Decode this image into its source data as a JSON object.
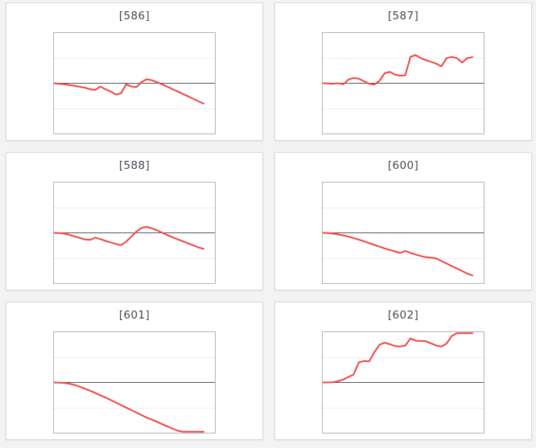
{
  "page": {
    "background_color": "#f3f3f3"
  },
  "colors": {
    "series_line": "#f04545",
    "zero_axis": "#5a5a5a",
    "gridline": "#dedede",
    "plot_border": "#b5b5b5",
    "card_border": "#d9d9d9",
    "card_background": "#ffffff",
    "title_text": "#434750"
  },
  "chart_data": [
    {
      "type": "line",
      "title": "[586]",
      "ylim": [
        -2,
        2
      ],
      "gridlines_y": [
        1,
        -1
      ],
      "zero_line_y": 0,
      "axis_labels_visible": false,
      "values": [
        0.0,
        -0.02,
        -0.04,
        -0.07,
        -0.1,
        -0.14,
        -0.18,
        -0.24,
        -0.27,
        -0.13,
        -0.24,
        -0.33,
        -0.45,
        -0.4,
        -0.04,
        -0.13,
        -0.15,
        0.05,
        0.16,
        0.12,
        0.04,
        -0.05,
        -0.14,
        -0.24,
        -0.33,
        -0.43,
        -0.52,
        -0.62,
        -0.72,
        -0.81
      ]
    },
    {
      "type": "line",
      "title": "[587]",
      "ylim": [
        -2,
        2
      ],
      "gridlines_y": [
        1,
        -1
      ],
      "zero_line_y": 0,
      "axis_labels_visible": false,
      "values": [
        0.0,
        -0.01,
        -0.02,
        0.0,
        -0.04,
        0.15,
        0.21,
        0.18,
        0.08,
        -0.02,
        -0.05,
        0.1,
        0.4,
        0.45,
        0.35,
        0.3,
        0.32,
        1.05,
        1.12,
        1.0,
        0.92,
        0.85,
        0.78,
        0.67,
        1.0,
        1.05,
        1.0,
        0.82,
        1.0,
        1.04
      ]
    },
    {
      "type": "line",
      "title": "[588]",
      "ylim": [
        -2,
        2
      ],
      "gridlines_y": [
        1,
        -1
      ],
      "zero_line_y": 0,
      "axis_labels_visible": false,
      "values": [
        0.0,
        -0.01,
        -0.03,
        -0.08,
        -0.14,
        -0.2,
        -0.26,
        -0.28,
        -0.19,
        -0.25,
        -0.32,
        -0.38,
        -0.44,
        -0.49,
        -0.35,
        -0.15,
        0.05,
        0.2,
        0.24,
        0.18,
        0.1,
        0.0,
        -0.09,
        -0.18,
        -0.26,
        -0.34,
        -0.42,
        -0.5,
        -0.58,
        -0.64
      ]
    },
    {
      "type": "line",
      "title": "[600]",
      "ylim": [
        -2,
        2
      ],
      "gridlines_y": [
        1,
        -1
      ],
      "zero_line_y": 0,
      "axis_labels_visible": false,
      "values": [
        0.0,
        -0.01,
        -0.03,
        -0.06,
        -0.1,
        -0.15,
        -0.21,
        -0.27,
        -0.34,
        -0.41,
        -0.48,
        -0.55,
        -0.62,
        -0.68,
        -0.74,
        -0.8,
        -0.72,
        -0.8,
        -0.86,
        -0.92,
        -0.97,
        -0.99,
        -1.02,
        -1.12,
        -1.22,
        -1.32,
        -1.42,
        -1.52,
        -1.62,
        -1.7
      ]
    },
    {
      "type": "line",
      "title": "[601]",
      "ylim": [
        -2,
        2
      ],
      "gridlines_y": [
        1,
        -1
      ],
      "zero_line_y": 0,
      "axis_labels_visible": false,
      "values": [
        0.0,
        -0.01,
        -0.02,
        -0.05,
        -0.1,
        -0.17,
        -0.25,
        -0.33,
        -0.42,
        -0.51,
        -0.6,
        -0.7,
        -0.8,
        -0.9,
        -1.0,
        -1.1,
        -1.2,
        -1.3,
        -1.4,
        -1.48,
        -1.57,
        -1.66,
        -1.75,
        -1.84,
        -1.92,
        -2.0,
        -2.0,
        -2.0,
        -2.0,
        -2.0
      ]
    },
    {
      "type": "line",
      "title": "[602]",
      "ylim": [
        -2,
        2
      ],
      "gridlines_y": [
        1,
        -1
      ],
      "zero_line_y": 0,
      "axis_labels_visible": false,
      "values": [
        0.0,
        0.0,
        0.01,
        0.05,
        0.12,
        0.22,
        0.32,
        0.8,
        0.85,
        0.84,
        1.2,
        1.5,
        1.58,
        1.52,
        1.45,
        1.43,
        1.47,
        1.75,
        1.66,
        1.65,
        1.64,
        1.55,
        1.47,
        1.43,
        1.55,
        1.85,
        2.0,
        2.0,
        2.0,
        2.0
      ]
    }
  ]
}
